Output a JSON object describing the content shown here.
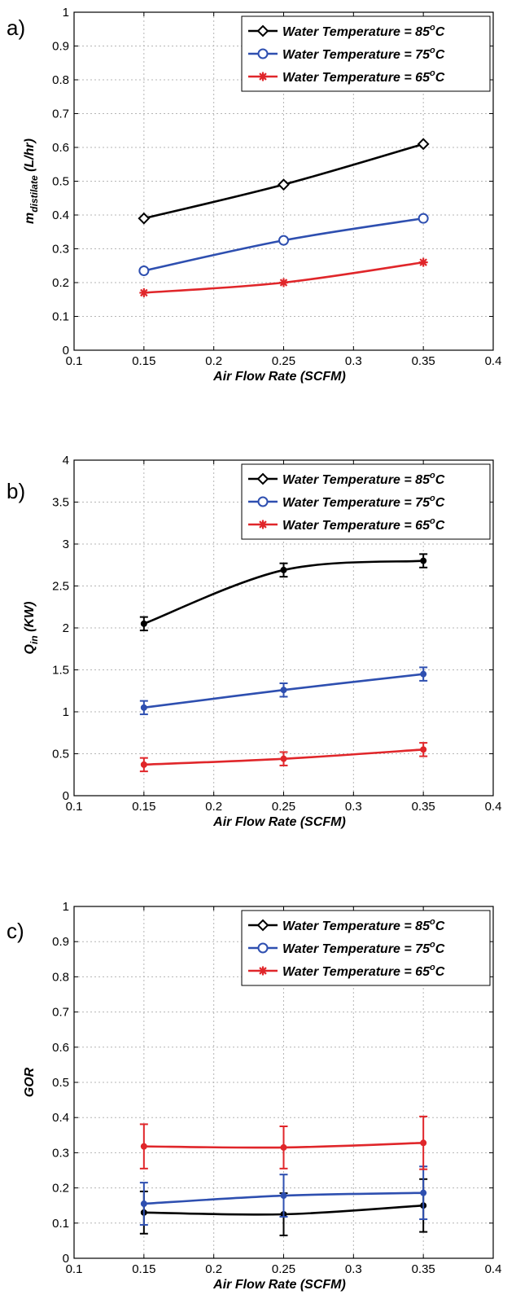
{
  "chart_data": [
    {
      "type": "line",
      "panel_label": "a)",
      "xlabel": "Air Flow Rate (SCFM)",
      "ylabel": {
        "base": "m",
        "sub": "distilate",
        "rest": " (L/hr)"
      },
      "xlim": [
        0.1,
        0.4
      ],
      "ylim": [
        0,
        1
      ],
      "xticks": [
        "0.1",
        "0.15",
        "0.2",
        "0.25",
        "0.3",
        "0.35",
        "0.4"
      ],
      "yticks": [
        "0",
        "0.1",
        "0.2",
        "0.3",
        "0.4",
        "0.5",
        "0.6",
        "0.7",
        "0.8",
        "0.9",
        "1"
      ],
      "grid": true,
      "legend_position": "top-right",
      "x": [
        0.15,
        0.25,
        0.35
      ],
      "series": [
        {
          "name": "Water Temperature = 85oC",
          "legend": {
            "prefix": "Water Temperature = 85",
            "sup": "o",
            "suffix": "C"
          },
          "color": "#000000",
          "marker": "diamond",
          "values": [
            0.39,
            0.49,
            0.61
          ],
          "errors": null
        },
        {
          "name": "Water Temperature = 75oC",
          "legend": {
            "prefix": "Water Temperature = 75",
            "sup": "o",
            "suffix": "C"
          },
          "color": "#2e4fb0",
          "marker": "circle",
          "values": [
            0.235,
            0.325,
            0.39
          ],
          "errors": null
        },
        {
          "name": "Water Temperature = 65oC",
          "legend": {
            "prefix": "Water Temperature = 65",
            "sup": "o",
            "suffix": "C"
          },
          "color": "#e0262a",
          "marker": "asterisk",
          "values": [
            0.17,
            0.2,
            0.26
          ],
          "errors": null
        }
      ]
    },
    {
      "type": "line",
      "panel_label": "b)",
      "xlabel": "Air Flow Rate (SCFM)",
      "ylabel": {
        "base": "Q",
        "sub": "in",
        "rest": " (KW)"
      },
      "xlim": [
        0.1,
        0.4
      ],
      "ylim": [
        0,
        4
      ],
      "xticks": [
        "0.1",
        "0.15",
        "0.2",
        "0.25",
        "0.3",
        "0.35",
        "0.4"
      ],
      "yticks": [
        "0",
        "0.5",
        "1",
        "1.5",
        "2",
        "2.5",
        "3",
        "3.5",
        "4"
      ],
      "grid": true,
      "legend_position": "top-right",
      "x": [
        0.15,
        0.25,
        0.35
      ],
      "series": [
        {
          "name": "Water Temperature = 85oC",
          "legend": {
            "prefix": "Water Temperature = 85",
            "sup": "o",
            "suffix": "C"
          },
          "color": "#000000",
          "marker": "diamond",
          "values": [
            2.05,
            2.69,
            2.8
          ],
          "errors": [
            0.08,
            0.08,
            0.08
          ]
        },
        {
          "name": "Water Temperature = 75oC",
          "legend": {
            "prefix": "Water Temperature = 75",
            "sup": "o",
            "suffix": "C"
          },
          "color": "#2e4fb0",
          "marker": "circle",
          "values": [
            1.05,
            1.26,
            1.45
          ],
          "errors": [
            0.08,
            0.08,
            0.08
          ]
        },
        {
          "name": "Water Temperature = 65oC",
          "legend": {
            "prefix": "Water Temperature = 65",
            "sup": "o",
            "suffix": "C"
          },
          "color": "#e0262a",
          "marker": "asterisk",
          "values": [
            0.37,
            0.44,
            0.55
          ],
          "errors": [
            0.08,
            0.08,
            0.08
          ]
        }
      ]
    },
    {
      "type": "line",
      "panel_label": "c)",
      "xlabel": "Air Flow Rate (SCFM)",
      "ylabel": {
        "base": "GOR",
        "sub": "",
        "rest": ""
      },
      "xlim": [
        0.1,
        0.4
      ],
      "ylim": [
        0,
        1
      ],
      "xticks": [
        "0.1",
        "0.15",
        "0.2",
        "0.25",
        "0.3",
        "0.35",
        "0.4"
      ],
      "yticks": [
        "0",
        "0.1",
        "0.2",
        "0.3",
        "0.4",
        "0.5",
        "0.6",
        "0.7",
        "0.8",
        "0.9",
        "1"
      ],
      "grid": true,
      "legend_position": "top-right",
      "x": [
        0.15,
        0.25,
        0.35
      ],
      "series": [
        {
          "name": "Water Temperature = 85oC",
          "legend": {
            "prefix": "Water Temperature = 85",
            "sup": "o",
            "suffix": "C"
          },
          "color": "#000000",
          "marker": "diamond",
          "values": [
            0.13,
            0.125,
            0.15
          ],
          "errors": [
            0.06,
            0.06,
            0.075
          ]
        },
        {
          "name": "Water Temperature = 75oC",
          "legend": {
            "prefix": "Water Temperature = 75",
            "sup": "o",
            "suffix": "C"
          },
          "color": "#2e4fb0",
          "marker": "circle",
          "values": [
            0.155,
            0.178,
            0.186
          ],
          "errors": [
            0.06,
            0.06,
            0.075
          ]
        },
        {
          "name": "Water Temperature = 65oC",
          "legend": {
            "prefix": "Water Temperature = 65",
            "sup": "o",
            "suffix": "C"
          },
          "color": "#e0262a",
          "marker": "asterisk",
          "values": [
            0.318,
            0.315,
            0.328
          ],
          "errors": [
            0.063,
            0.06,
            0.075
          ]
        }
      ]
    }
  ]
}
